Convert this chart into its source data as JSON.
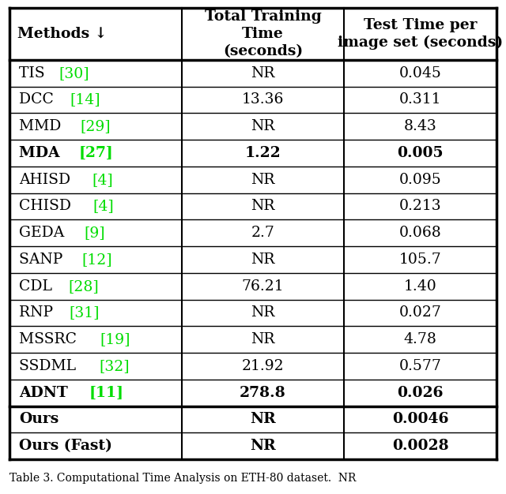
{
  "caption": "Table 3. Computational Time Analysis on ETH-80 dataset.  NR",
  "rows": [
    {
      "method": "TIS",
      "ref": "30",
      "train": "NR",
      "test": "0.045",
      "bold": false
    },
    {
      "method": "DCC",
      "ref": "14",
      "train": "13.36",
      "test": "0.311",
      "bold": false
    },
    {
      "method": "MMD",
      "ref": "29",
      "train": "NR",
      "test": "8.43",
      "bold": false
    },
    {
      "method": "MDA",
      "ref": "27",
      "train": "1.22",
      "test": "0.005",
      "bold": true
    },
    {
      "method": "AHISD",
      "ref": "4",
      "train": "NR",
      "test": "0.095",
      "bold": false
    },
    {
      "method": "CHISD",
      "ref": "4",
      "train": "NR",
      "test": "0.213",
      "bold": false
    },
    {
      "method": "GEDA",
      "ref": "9",
      "train": "2.7",
      "test": "0.068",
      "bold": false
    },
    {
      "method": "SANP",
      "ref": "12",
      "train": "NR",
      "test": "105.7",
      "bold": false
    },
    {
      "method": "CDL",
      "ref": "28",
      "train": "76.21",
      "test": "1.40",
      "bold": false
    },
    {
      "method": "RNP",
      "ref": "31",
      "train": "NR",
      "test": "0.027",
      "bold": false
    },
    {
      "method": "MSSRC",
      "ref": "19",
      "train": "NR",
      "test": "4.78",
      "bold": false
    },
    {
      "method": "SSDML",
      "ref": "32",
      "train": "21.92",
      "test": "0.577",
      "bold": false
    },
    {
      "method": "ADNT",
      "ref": "11",
      "train": "278.8",
      "test": "0.026",
      "bold": true
    },
    {
      "method": "Ours",
      "ref": "",
      "train": "NR",
      "test": "0.0046",
      "bold": true
    },
    {
      "method": "Ours (Fast)",
      "ref": "",
      "train": "NR",
      "test": "0.0028",
      "bold": true
    }
  ],
  "ref_color": "#00dd00",
  "border_color": "#000000",
  "bg_color": "#ffffff",
  "text_color": "#000000",
  "figsize": [
    6.4,
    6.26
  ],
  "dpi": 100
}
